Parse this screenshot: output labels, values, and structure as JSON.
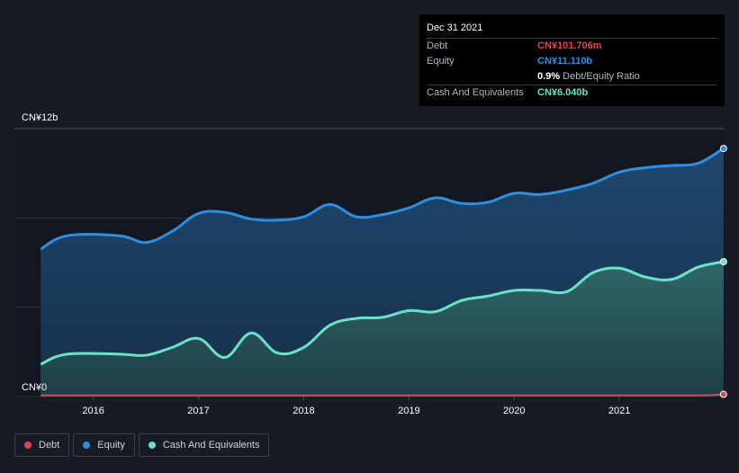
{
  "chart_data": {
    "type": "area",
    "ylim": [
      0,
      12
    ],
    "y_unit": "CN¥b",
    "y_tick_labels": [
      "CN¥12b",
      "CN¥0"
    ],
    "x_tick_labels": [
      "2016",
      "2017",
      "2018",
      "2019",
      "2020",
      "2021"
    ],
    "x_ticks": [
      2016,
      2017,
      2018,
      2019,
      2020,
      2021
    ],
    "xlim": [
      2015.25,
      2022.0
    ],
    "series": [
      {
        "name": "Debt",
        "color": "#e0474c",
        "points": [
          [
            2015.5,
            0.05
          ],
          [
            2016,
            0.05
          ],
          [
            2017,
            0.05
          ],
          [
            2018,
            0.05
          ],
          [
            2019,
            0.05
          ],
          [
            2020,
            0.05
          ],
          [
            2021,
            0.05
          ],
          [
            2021.75,
            0.05
          ],
          [
            2021.99,
            0.1
          ]
        ]
      },
      {
        "name": "Equity",
        "color": "#2e8fe0",
        "points": [
          [
            2015.5,
            6.6
          ],
          [
            2015.75,
            7.2
          ],
          [
            2016.25,
            7.2
          ],
          [
            2016.5,
            6.9
          ],
          [
            2016.75,
            7.4
          ],
          [
            2017,
            8.2
          ],
          [
            2017.25,
            8.25
          ],
          [
            2017.5,
            7.95
          ],
          [
            2017.75,
            7.9
          ],
          [
            2018,
            8.05
          ],
          [
            2018.25,
            8.6
          ],
          [
            2018.5,
            8.05
          ],
          [
            2018.75,
            8.15
          ],
          [
            2019,
            8.45
          ],
          [
            2019.25,
            8.9
          ],
          [
            2019.5,
            8.65
          ],
          [
            2019.75,
            8.7
          ],
          [
            2020,
            9.1
          ],
          [
            2020.25,
            9.05
          ],
          [
            2020.5,
            9.25
          ],
          [
            2020.75,
            9.55
          ],
          [
            2021,
            10.05
          ],
          [
            2021.25,
            10.25
          ],
          [
            2021.5,
            10.35
          ],
          [
            2021.75,
            10.45
          ],
          [
            2021.99,
            11.11
          ]
        ]
      },
      {
        "name": "Cash And Equivalents",
        "color": "#6de0c9",
        "points": [
          [
            2015.5,
            1.45
          ],
          [
            2015.75,
            1.9
          ],
          [
            2016.25,
            1.9
          ],
          [
            2016.5,
            1.85
          ],
          [
            2016.75,
            2.2
          ],
          [
            2017,
            2.6
          ],
          [
            2017.25,
            1.75
          ],
          [
            2017.5,
            2.85
          ],
          [
            2017.75,
            1.95
          ],
          [
            2018,
            2.2
          ],
          [
            2018.25,
            3.2
          ],
          [
            2018.5,
            3.5
          ],
          [
            2018.75,
            3.55
          ],
          [
            2019,
            3.85
          ],
          [
            2019.25,
            3.8
          ],
          [
            2019.5,
            4.3
          ],
          [
            2019.75,
            4.5
          ],
          [
            2020,
            4.75
          ],
          [
            2020.25,
            4.75
          ],
          [
            2020.5,
            4.7
          ],
          [
            2020.75,
            5.55
          ],
          [
            2021,
            5.75
          ],
          [
            2021.25,
            5.35
          ],
          [
            2021.5,
            5.25
          ],
          [
            2021.75,
            5.8
          ],
          [
            2021.99,
            6.04
          ]
        ]
      }
    ]
  },
  "tooltip": {
    "date": "Dec 31 2021",
    "rows": [
      {
        "label": "Debt",
        "value": "CN¥101.706m",
        "color": "#e0474c"
      },
      {
        "label": "Equity",
        "value": "CN¥11.110b",
        "color": "#2e8fe0"
      },
      {
        "label": "",
        "ratio_value": "0.9%",
        "ratio_label": "Debt/Equity Ratio"
      },
      {
        "label": "Cash And Equivalents",
        "value": "CN¥6.040b",
        "color": "#6de0c9"
      }
    ]
  },
  "legend": [
    {
      "label": "Debt",
      "color": "#e0474c"
    },
    {
      "label": "Equity",
      "color": "#2e8fe0"
    },
    {
      "label": "Cash And Equivalents",
      "color": "#6de0c9"
    }
  ]
}
